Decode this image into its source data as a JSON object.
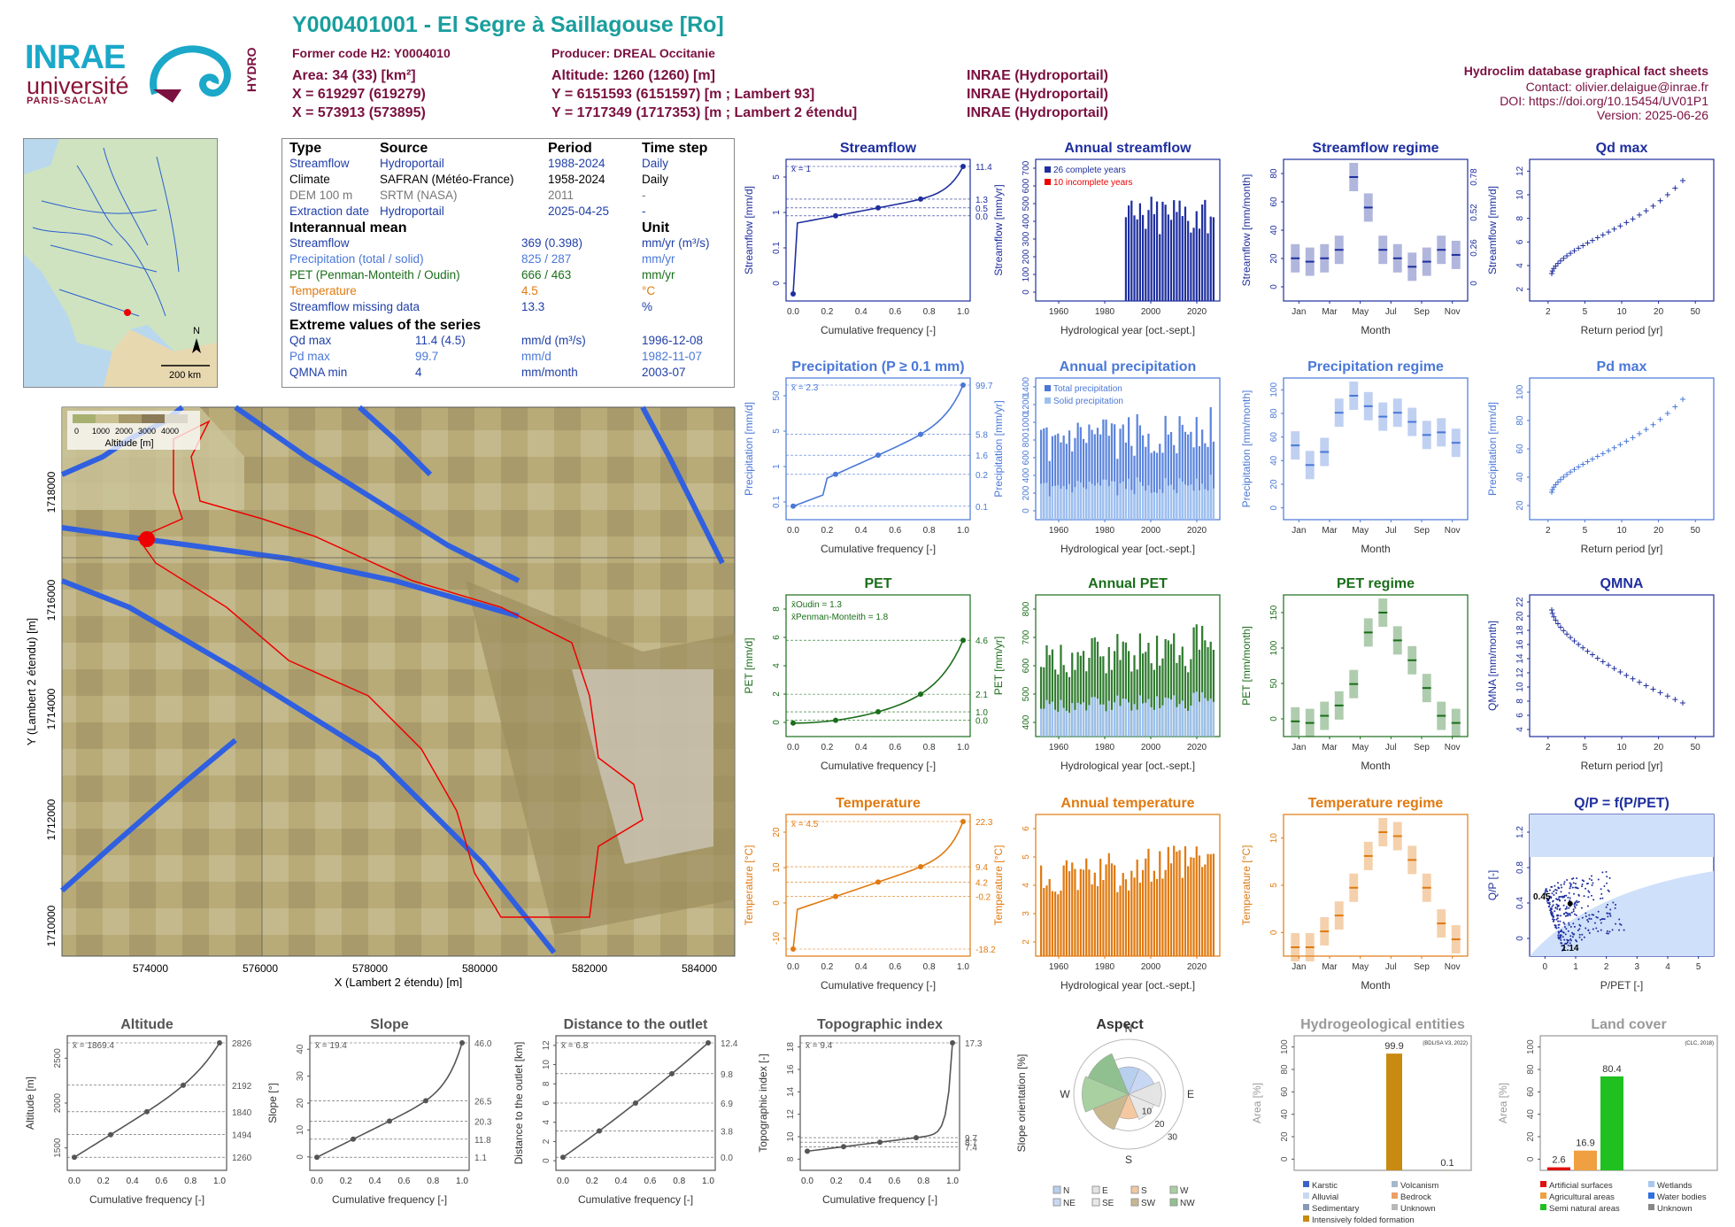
{
  "header": {
    "title": "Y000401001 - El Segre à Saillagouse [Ro]",
    "former_code": "Former code H2: Y0004010",
    "producer": "Producer: DREAL Occitanie",
    "area": "Area: 34 (33) [km²]",
    "altitude": "Altitude: 1260 (1260) [m]",
    "x1": "X = 619297 (619279)",
    "y1": "Y = 6151593 (6151597) [m ; Lambert 93]",
    "x2": "X = 573913 (573895)",
    "y2": "Y = 1717349 (1717353) [m ; Lambert 2 étendu]",
    "src1": "INRAE (Hydroportail)",
    "src2": "INRAE (Hydroportail)",
    "src3": "INRAE (Hydroportail)",
    "db": "Hydroclim database graphical fact sheets",
    "contact": "Contact: olivier.delaigue@inrae.fr",
    "doi": "DOI: https://doi.org/10.15454/UV01P1",
    "version": "Version: 2025-06-26",
    "logo_inrae": "INRAE",
    "logo_univ": "université",
    "logo_ps": "PARIS-SACLAY",
    "logo_hydro": "HYDRO"
  },
  "small_map": {
    "north": "N",
    "scale": "200 km"
  },
  "info": {
    "h_type": "Type",
    "h_source": "Source",
    "h_period": "Period",
    "h_step": "Time step",
    "rows": [
      {
        "type": "Streamflow",
        "source": "Hydroportail",
        "period": "1988-2024",
        "step": "Daily",
        "cls": "blue"
      },
      {
        "type": "Climate",
        "source": "SAFRAN (Météo-France)",
        "period": "1958-2024",
        "step": "Daily",
        "cls": ""
      },
      {
        "type": "DEM 100 m",
        "source": "SRTM (NASA)",
        "period": "2011",
        "step": "-",
        "cls": "gray"
      },
      {
        "type": "Extraction date",
        "source": "Hydroportail",
        "period": "2025-04-25",
        "step": "-",
        "cls": "blue"
      }
    ],
    "h_mean": "Interannual mean",
    "h_unit": "Unit",
    "means": [
      {
        "name": "Streamflow",
        "value": "369 (0.398)",
        "unit": "mm/yr (m³/s)",
        "cls": "blue"
      },
      {
        "name": "Precipitation (total / solid)",
        "value": "825 / 287",
        "unit": "mm/yr",
        "cls": "pblue"
      },
      {
        "name": "PET (Penman-Monteith / Oudin)",
        "value": "666 / 463",
        "unit": "mm/yr",
        "cls": "green"
      },
      {
        "name": "Temperature",
        "value": "4.5",
        "unit": "°C",
        "cls": "orange"
      },
      {
        "name": "Streamflow missing data",
        "value": "13.3",
        "unit": "%",
        "cls": "blue"
      }
    ],
    "h_extreme": "Extreme values of the series",
    "extremes": [
      {
        "name": "Qd max",
        "value": "11.4 (4.5)",
        "unit": "mm/d (m³/s)",
        "date": "1996-12-08",
        "cls": "blue"
      },
      {
        "name": "Pd max",
        "value": "99.7",
        "unit": "mm/d",
        "date": "1982-11-07",
        "cls": "pblue"
      },
      {
        "name": "QMNA min",
        "value": "4",
        "unit": "mm/month",
        "date": "2003-07",
        "cls": "blue"
      }
    ]
  },
  "bigmap": {
    "legend_title": "Altitude [m]",
    "legend_ticks": [
      "0",
      "1000",
      "2000",
      "3000",
      "4000"
    ],
    "xlabel": "X (Lambert 2 étendu) [m]",
    "ylabel": "Y (Lambert 2 étendu) [m]",
    "xticks": [
      "574000",
      "576000",
      "578000",
      "580000",
      "582000",
      "584000"
    ],
    "yticks": [
      "1710000",
      "1712000",
      "1714000",
      "1716000",
      "1718000"
    ]
  },
  "colors": {
    "streamflow": "#1f2f9e",
    "precip": "#4a78d8",
    "pet": "#1a6e1a",
    "temp": "#e07a10",
    "gray": "#555555",
    "teal": "#1a9e9e"
  },
  "chart_data": [
    {
      "id": "streamflow",
      "type": "line",
      "title": "Streamflow",
      "xlabel": "Cumulative frequency [-]",
      "ylabel": "Streamflow [mm/d]",
      "log": true,
      "mean": "x̄ = 1",
      "yticks": [
        "0",
        "0.1",
        "1",
        "5"
      ],
      "right": [
        "11.4",
        "1.3",
        "0.5",
        "0.0"
      ],
      "points": [
        [
          0,
          0
        ],
        [
          0.25,
          0.55
        ],
        [
          0.5,
          0.8
        ],
        [
          0.75,
          1.3
        ],
        [
          1,
          11.4
        ]
      ]
    },
    {
      "id": "annual_streamflow",
      "type": "bar",
      "title": "Annual streamflow",
      "xlabel": "Hydrological year [oct.-sept.]",
      "ylabel": "Streamflow [mm/yr]",
      "xticks": [
        "1960",
        "1980",
        "2000",
        "2020"
      ],
      "yticks": [
        "0",
        "100",
        "200",
        "300",
        "400",
        "500",
        "600",
        "700"
      ],
      "legend": [
        "26 complete years",
        "10 incomplete years"
      ]
    },
    {
      "id": "streamflow_regime",
      "type": "box",
      "title": "Streamflow regime",
      "xlabel": "Month",
      "ylabel": "Streamflow [mm/month]",
      "xticks": [
        "Jan",
        "Mar",
        "May",
        "Jul",
        "Sep",
        "Nov"
      ],
      "yticks": [
        "0",
        "20",
        "40",
        "60",
        "80"
      ],
      "right": [
        "0",
        "0.26",
        "0.52",
        "0.78"
      ],
      "values": [
        20,
        18,
        20,
        25,
        68,
        50,
        25,
        20,
        15,
        18,
        25,
        22
      ]
    },
    {
      "id": "qdmax",
      "type": "scatter",
      "title": "Qd max",
      "xlabel": "Return period [yr]",
      "ylabel": "Streamflow [mm/d]",
      "xticks": [
        "2",
        "5",
        "10",
        "20",
        "50"
      ],
      "yticks": [
        "2",
        "4",
        "6",
        "8",
        "10",
        "12"
      ]
    },
    {
      "id": "precip",
      "type": "line",
      "title": "Precipitation (P ≥ 0.1 mm)",
      "xlabel": "Cumulative frequency [-]",
      "ylabel": "Precipitation [mm/d]",
      "mean": "x̄ = 2.3",
      "yticks": [
        "0.1",
        "1",
        "5",
        "50"
      ],
      "right": [
        "99.7",
        "5.8",
        "1.6",
        "0.2",
        "0.1"
      ]
    },
    {
      "id": "annual_precip",
      "type": "bar",
      "title": "Annual precipitation",
      "xlabel": "Hydrological year [oct.-sept.]",
      "ylabel": "Precipitation [mm/yr]",
      "xticks": [
        "1960",
        "1980",
        "2000",
        "2020"
      ],
      "yticks": [
        "0",
        "200",
        "400",
        "600",
        "800",
        "1000",
        "1200",
        "1400"
      ],
      "legend": [
        "Total precipitation",
        "Solid precipitation"
      ]
    },
    {
      "id": "precip_regime",
      "type": "box",
      "title": "Precipitation regime",
      "xlabel": "Month",
      "ylabel": "Precipitation [mm/month]",
      "xticks": [
        "Jan",
        "Mar",
        "May",
        "Jul",
        "Sep",
        "Nov"
      ],
      "yticks": [
        "0",
        "20",
        "40",
        "60",
        "80",
        "100"
      ],
      "values": [
        50,
        35,
        45,
        75,
        88,
        80,
        72,
        75,
        68,
        58,
        60,
        52
      ]
    },
    {
      "id": "pdmax",
      "type": "scatter",
      "title": "Pd max",
      "xlabel": "Return period [yr]",
      "ylabel": "Precipitation [mm/d]",
      "xticks": [
        "2",
        "5",
        "10",
        "20",
        "50"
      ],
      "yticks": [
        "20",
        "40",
        "60",
        "80",
        "100"
      ]
    },
    {
      "id": "pet",
      "type": "line",
      "title": "PET",
      "xlabel": "Cumulative frequency [-]",
      "ylabel": "PET [mm/d]",
      "mean": "x̄Oudin = 1.3",
      "mean2": "x̄Penman-Monteith = 1.8",
      "yticks": [
        "0",
        "2",
        "4",
        "6",
        "8"
      ],
      "right": [
        "4.6",
        "2.1",
        "1.0",
        "0.0"
      ]
    },
    {
      "id": "annual_pet",
      "type": "bar",
      "title": "Annual PET",
      "xlabel": "Hydrological year [oct.-sept.]",
      "ylabel": "PET [mm/yr]",
      "xticks": [
        "1960",
        "1980",
        "2000",
        "2020"
      ],
      "yticks": [
        "400",
        "500",
        "600",
        "700",
        "800"
      ]
    },
    {
      "id": "pet_regime",
      "type": "box",
      "title": "PET regime",
      "xlabel": "Month",
      "ylabel": "PET [mm/month]",
      "xticks": [
        "Jan",
        "Mar",
        "May",
        "Jul",
        "Sep",
        "Nov"
      ],
      "yticks": [
        "0",
        "50",
        "100",
        "150"
      ],
      "values": [
        8,
        6,
        15,
        28,
        55,
        120,
        145,
        110,
        85,
        50,
        15,
        6
      ]
    },
    {
      "id": "qmna",
      "type": "scatter",
      "title": "QMNA",
      "xlabel": "Return period [yr]",
      "ylabel": "QMNA [mm/month]",
      "xticks": [
        "2",
        "5",
        "10",
        "20",
        "50"
      ],
      "yticks": [
        "4",
        "6",
        "8",
        "10",
        "12",
        "14",
        "16",
        "18",
        "20",
        "22"
      ]
    },
    {
      "id": "temp",
      "type": "line",
      "title": "Temperature",
      "xlabel": "Cumulative frequency [-]",
      "ylabel": "Temperature [°C]",
      "mean": "x̄ = 4.5",
      "yticks": [
        "-10",
        "0",
        "10",
        "20"
      ],
      "right": [
        "22.3",
        "9.4",
        "4.2",
        "-0.2",
        "-18.2"
      ]
    },
    {
      "id": "annual_temp",
      "type": "bar",
      "title": "Annual temperature",
      "xlabel": "Hydrological year [oct.-sept.]",
      "ylabel": "Temperature [°C]",
      "xticks": [
        "1960",
        "1980",
        "2000",
        "2020"
      ],
      "yticks": [
        "2",
        "3",
        "4",
        "5",
        "6"
      ]
    },
    {
      "id": "temp_regime",
      "type": "box",
      "title": "Temperature regime",
      "xlabel": "Month",
      "ylabel": "Temperature [°C]",
      "xticks": [
        "Jan",
        "Mar",
        "May",
        "Jul",
        "Sep",
        "Nov"
      ],
      "yticks": [
        "0",
        "5",
        "10"
      ],
      "values": [
        -2,
        -2,
        0,
        2,
        5.5,
        9.5,
        12.5,
        12,
        9,
        5.5,
        1,
        -1
      ]
    },
    {
      "id": "qp",
      "type": "scatter",
      "title": "Q/P = f(P/PET)",
      "xlabel": "P/PET [-]",
      "ylabel": "Q/P [-]",
      "xticks": [
        "0",
        "1",
        "2",
        "3",
        "4",
        "5"
      ],
      "yticks": [
        "0",
        "0.4",
        "0.8",
        "1.2"
      ],
      "marks": [
        "0.45",
        "1.14"
      ]
    },
    {
      "id": "altitude",
      "type": "line",
      "title": "Altitude",
      "xlabel": "Cumulative frequency [-]",
      "ylabel": "Altitude [m]",
      "mean": "x̄ = 1869.4",
      "yticks": [
        "1500",
        "2000",
        "2500"
      ],
      "right": [
        "2826",
        "2192",
        "1840",
        "1494",
        "1260"
      ]
    },
    {
      "id": "slope",
      "type": "line",
      "title": "Slope",
      "xlabel": "Cumulative frequency [-]",
      "ylabel": "Slope [°]",
      "mean": "x̄ = 19.4",
      "yticks": [
        "0",
        "10",
        "20",
        "30",
        "40"
      ],
      "right": [
        "46.0",
        "26.5",
        "20.3",
        "11.8",
        "1.1"
      ]
    },
    {
      "id": "distance",
      "type": "line",
      "title": "Distance to the outlet",
      "xlabel": "Cumulative frequency [-]",
      "ylabel": "Distance to the outlet [km]",
      "mean": "x̄ = 6.8",
      "yticks": [
        "0",
        "2",
        "4",
        "6",
        "8",
        "10",
        "12"
      ],
      "right": [
        "12.4",
        "9.8",
        "6.9",
        "3.8",
        "0.0"
      ]
    },
    {
      "id": "topo",
      "type": "line",
      "title": "Topographic index",
      "xlabel": "Cumulative frequency [-]",
      "ylabel": "Topographic index [-]",
      "mean": "x̄ = 9.4",
      "yticks": [
        "8",
        "10",
        "12",
        "14",
        "16",
        "18"
      ],
      "right": [
        "17.3",
        "9.7",
        "8.7",
        "7.4"
      ]
    },
    {
      "id": "aspect",
      "type": "pie",
      "title": "Aspect",
      "ylabel": "Slope orientation [%]",
      "dirs": [
        "N",
        "E",
        "S",
        "W"
      ],
      "rings": [
        "10",
        "20",
        "30"
      ],
      "legend": [
        "N",
        "E",
        "S",
        "W",
        "NE",
        "SE",
        "SW",
        "NW"
      ]
    },
    {
      "id": "hydrogeo",
      "type": "bar",
      "title": "Hydrogeological entities",
      "ylabel": "Area [%]",
      "yticks": [
        "0",
        "20",
        "40",
        "60",
        "80",
        "100"
      ],
      "note": "(BDLISA V3, 2022)",
      "labels": [
        "99.9",
        "0.1"
      ],
      "legend": [
        "Karstic",
        "Volcanism",
        "Alluvial",
        "Bedrock",
        "Sedimentary",
        "Unknown",
        "Intensively folded formation"
      ]
    },
    {
      "id": "landcover",
      "type": "bar",
      "title": "Land cover",
      "ylabel": "Area [%]",
      "yticks": [
        "0",
        "20",
        "40",
        "60",
        "80",
        "100"
      ],
      "note": "(CLC, 2018)",
      "labels": [
        "2.6",
        "16.9",
        "80.4"
      ],
      "values": [
        2.6,
        16.9,
        80.4
      ],
      "legend": [
        "Artificial surfaces",
        "Wetlands",
        "Agricultural areas",
        "Water bodies",
        "Semi natural areas",
        "Unknown"
      ]
    }
  ]
}
